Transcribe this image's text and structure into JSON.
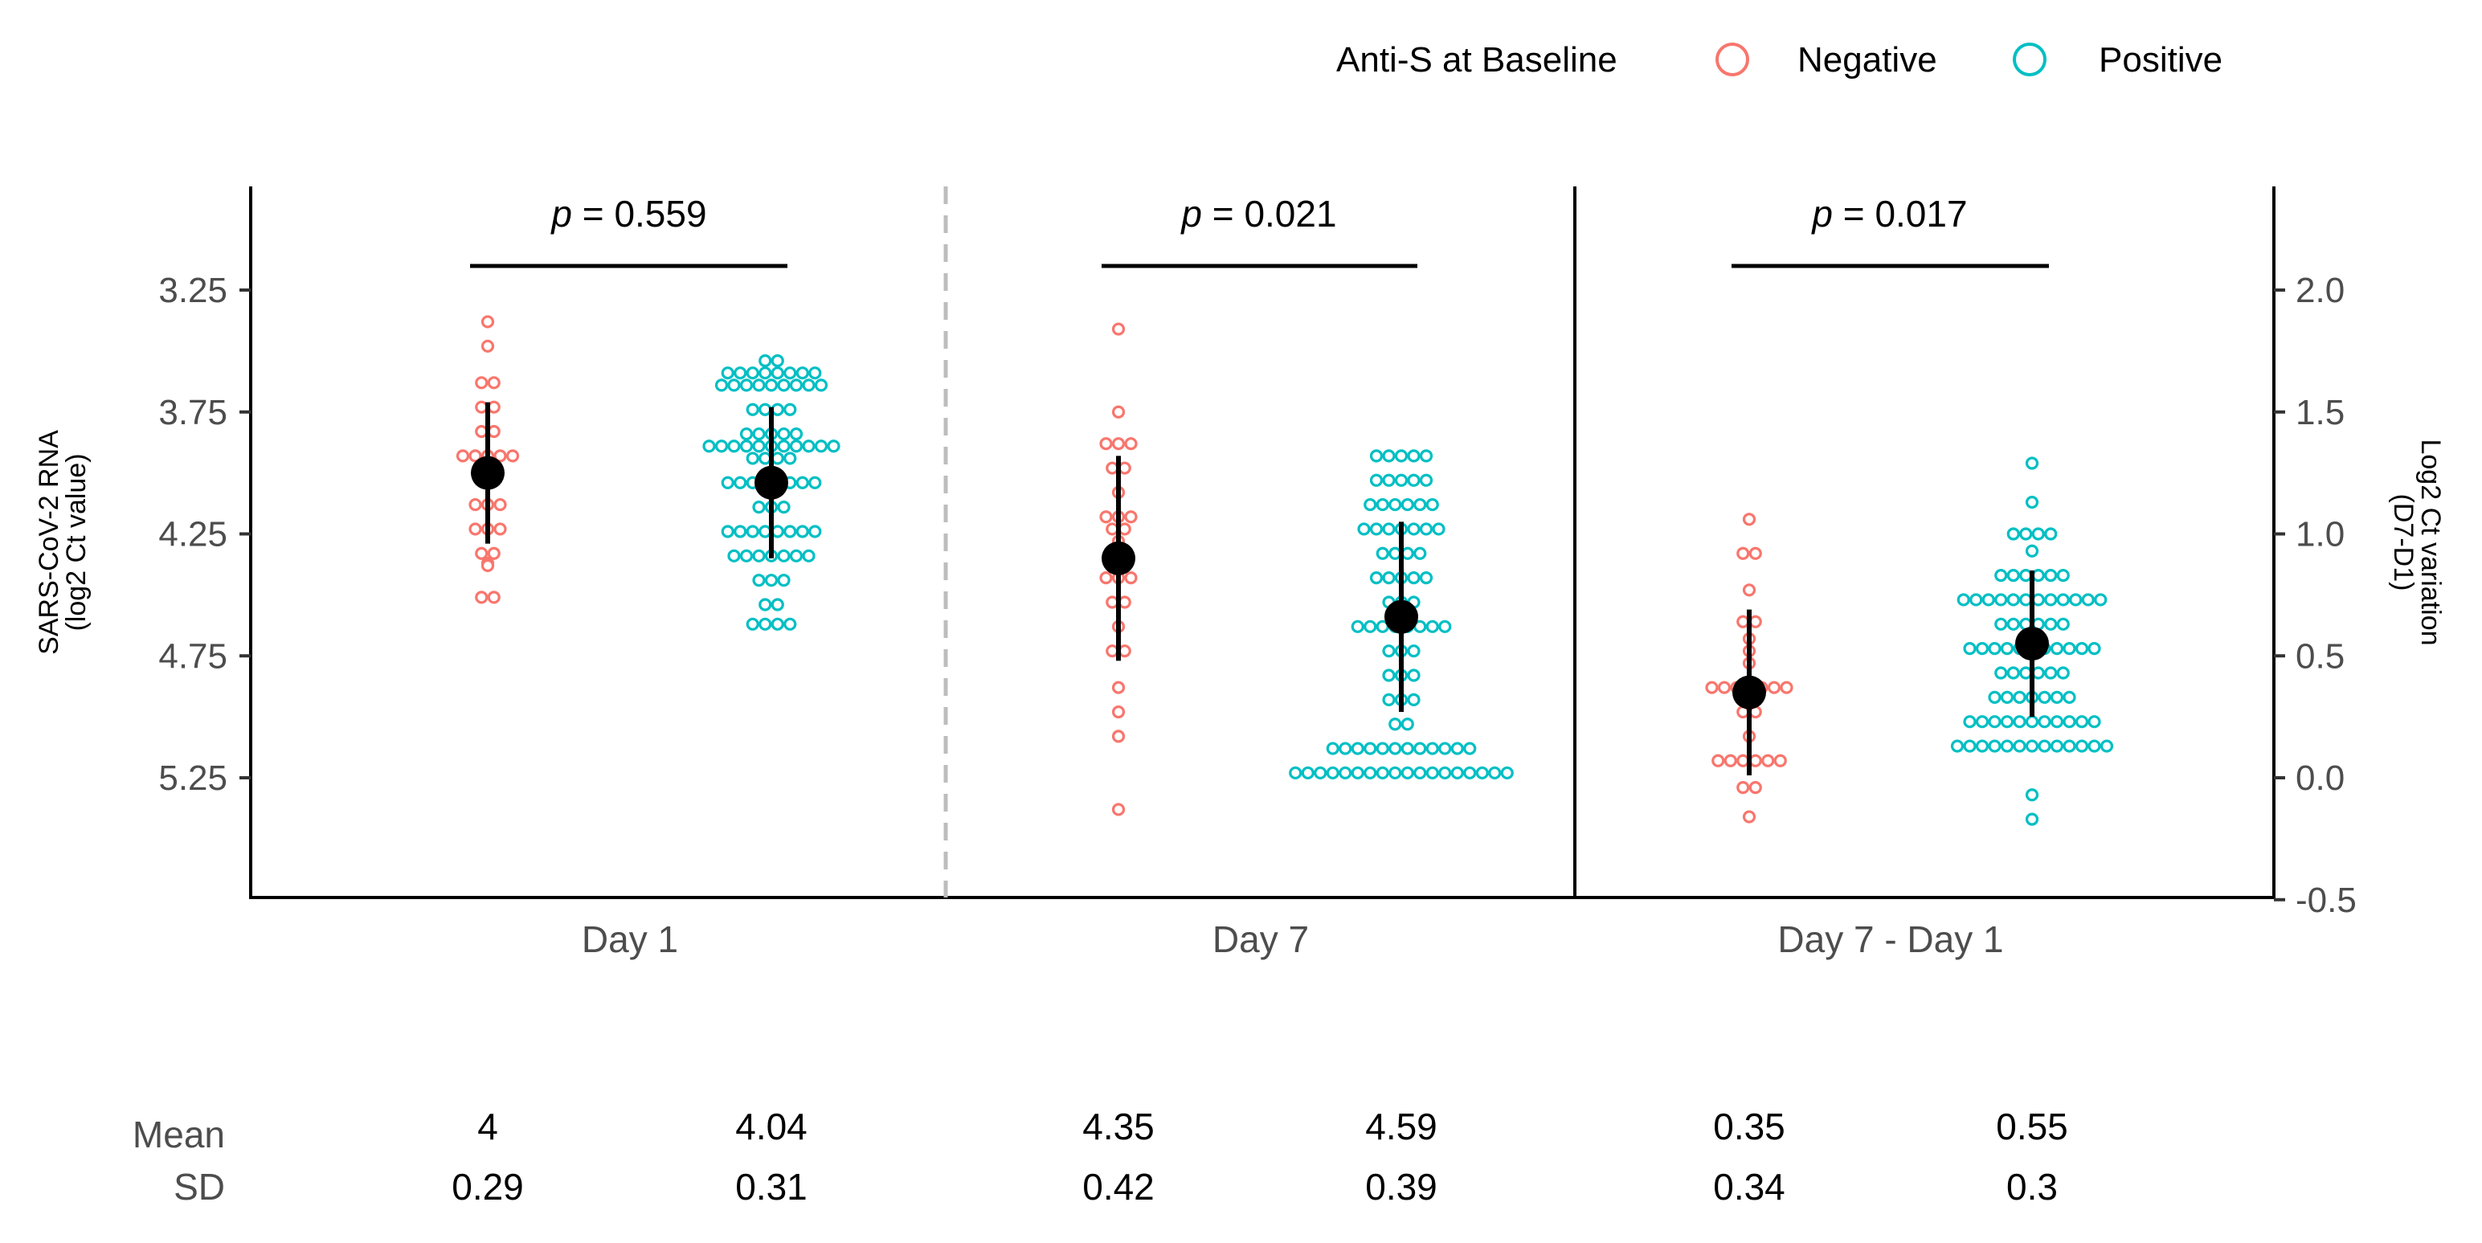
{
  "chart_data": {
    "type": "scatter",
    "legend": {
      "title": "Anti-S at Baseline",
      "entries": [
        {
          "label": "Negative",
          "color": "#F8766D"
        },
        {
          "label": "Positive",
          "color": "#00BFC4"
        }
      ],
      "position": "top-right"
    },
    "y_left": {
      "label_line1": "SARS-CoV-2 RNA",
      "label_line2": "(log2 Ct value)",
      "ticks": [
        "3.25",
        "3.75",
        "4.25",
        "4.75",
        "5.25"
      ],
      "tick_values": [
        3.25,
        3.75,
        4.25,
        4.75,
        5.25
      ],
      "range": [
        2.84,
        5.75
      ],
      "reversed": true
    },
    "y_right": {
      "label_line1": "Log2 Ct variation",
      "label_line2": "(D7-D1)",
      "ticks": [
        "2.0",
        "1.5",
        "1.0",
        "0.5",
        "0.0",
        "-0.5"
      ],
      "tick_values": [
        2.0,
        1.5,
        1.0,
        0.5,
        0.0,
        -0.5
      ],
      "range": [
        -0.5,
        2.42
      ]
    },
    "panels": [
      {
        "category": "Day 1",
        "axis": "left",
        "p_label": "p",
        "p_value": " = 0.559",
        "groups": [
          {
            "name": "Negative",
            "mean": 4.0,
            "sd": 0.29,
            "mean_text": "4",
            "sd_text": "0.29",
            "points": [
              3.38,
              3.48,
              3.63,
              3.63,
              3.73,
              3.73,
              3.83,
              3.83,
              3.93,
              3.93,
              3.93,
              3.93,
              3.93,
              4.03,
              4.03,
              4.13,
              4.13,
              4.13,
              4.23,
              4.23,
              4.23,
              4.33,
              4.33,
              4.37,
              4.38,
              4.51,
              4.51
            ]
          },
          {
            "name": "Positive",
            "mean": 4.04,
            "sd": 0.31,
            "mean_text": "4.04",
            "sd_text": "0.31",
            "points": [
              3.54,
              3.54,
              3.59,
              3.59,
              3.59,
              3.59,
              3.59,
              3.59,
              3.59,
              3.59,
              3.64,
              3.64,
              3.64,
              3.64,
              3.64,
              3.64,
              3.64,
              3.64,
              3.64,
              3.74,
              3.74,
              3.74,
              3.74,
              3.84,
              3.84,
              3.84,
              3.84,
              3.84,
              3.89,
              3.89,
              3.89,
              3.89,
              3.89,
              3.89,
              3.89,
              3.89,
              3.89,
              3.89,
              3.89,
              3.94,
              3.94,
              3.94,
              3.94,
              4.04,
              4.04,
              4.04,
              4.04,
              4.04,
              4.04,
              4.04,
              4.04,
              4.14,
              4.14,
              4.14,
              4.24,
              4.24,
              4.24,
              4.24,
              4.24,
              4.24,
              4.24,
              4.24,
              4.34,
              4.34,
              4.34,
              4.34,
              4.34,
              4.34,
              4.34,
              4.44,
              4.44,
              4.44,
              4.54,
              4.54,
              4.62,
              4.62,
              4.62,
              4.62
            ]
          }
        ]
      },
      {
        "category": "Day 7",
        "axis": "left",
        "p_label": "p",
        "p_value": " = 0.021",
        "groups": [
          {
            "name": "Negative",
            "mean": 4.35,
            "sd": 0.42,
            "mean_text": "4.35",
            "sd_text": "0.42",
            "points": [
              3.41,
              3.75,
              3.88,
              3.88,
              3.88,
              3.98,
              3.98,
              4.08,
              4.18,
              4.18,
              4.18,
              4.23,
              4.23,
              4.28,
              4.33,
              4.33,
              4.43,
              4.43,
              4.43,
              4.53,
              4.53,
              4.63,
              4.73,
              4.73,
              4.88,
              4.98,
              5.08,
              5.38
            ]
          },
          {
            "name": "Positive",
            "mean": 4.59,
            "sd": 0.39,
            "mean_text": "4.59",
            "sd_text": "0.39",
            "points": [
              3.93,
              3.93,
              3.93,
              3.93,
              3.93,
              4.03,
              4.03,
              4.03,
              4.03,
              4.03,
              4.13,
              4.13,
              4.13,
              4.13,
              4.13,
              4.13,
              4.23,
              4.23,
              4.23,
              4.23,
              4.23,
              4.23,
              4.23,
              4.33,
              4.33,
              4.33,
              4.33,
              4.43,
              4.43,
              4.43,
              4.43,
              4.43,
              4.53,
              4.53,
              4.53,
              4.63,
              4.63,
              4.63,
              4.63,
              4.63,
              4.63,
              4.63,
              4.63,
              4.73,
              4.73,
              4.73,
              4.83,
              4.83,
              4.83,
              4.93,
              4.93,
              4.93,
              5.03,
              5.03,
              5.13,
              5.13,
              5.13,
              5.13,
              5.13,
              5.13,
              5.13,
              5.13,
              5.13,
              5.13,
              5.13,
              5.13,
              5.23,
              5.23,
              5.23,
              5.23,
              5.23,
              5.23,
              5.23,
              5.23,
              5.23,
              5.23,
              5.23,
              5.23,
              5.23,
              5.23,
              5.23,
              5.23,
              5.23,
              5.23
            ]
          }
        ]
      },
      {
        "category": "Day 7 - Day 1",
        "axis": "right",
        "p_label": "p",
        "p_value": " = 0.017",
        "groups": [
          {
            "name": "Negative",
            "mean": 0.35,
            "sd": 0.34,
            "mean_text": "0.35",
            "sd_text": "0.34",
            "points": [
              1.06,
              0.92,
              0.92,
              0.77,
              0.64,
              0.64,
              0.57,
              0.52,
              0.47,
              0.37,
              0.37,
              0.37,
              0.37,
              0.37,
              0.37,
              0.37,
              0.27,
              0.27,
              0.17,
              0.07,
              0.07,
              0.07,
              0.07,
              0.07,
              0.07,
              -0.04,
              -0.04,
              -0.16
            ]
          },
          {
            "name": "Positive",
            "mean": 0.55,
            "sd": 0.3,
            "mean_text": "0.55",
            "sd_text": "0.3",
            "points": [
              1.29,
              1.13,
              1.0,
              1.0,
              1.0,
              1.0,
              0.93,
              0.83,
              0.83,
              0.83,
              0.83,
              0.83,
              0.83,
              0.73,
              0.73,
              0.73,
              0.73,
              0.73,
              0.73,
              0.73,
              0.73,
              0.73,
              0.73,
              0.73,
              0.73,
              0.63,
              0.63,
              0.63,
              0.63,
              0.63,
              0.63,
              0.53,
              0.53,
              0.53,
              0.53,
              0.53,
              0.53,
              0.53,
              0.53,
              0.53,
              0.53,
              0.53,
              0.43,
              0.43,
              0.43,
              0.43,
              0.43,
              0.43,
              0.33,
              0.33,
              0.33,
              0.33,
              0.33,
              0.33,
              0.33,
              0.23,
              0.23,
              0.23,
              0.23,
              0.23,
              0.23,
              0.23,
              0.23,
              0.23,
              0.23,
              0.23,
              0.13,
              0.13,
              0.13,
              0.13,
              0.13,
              0.13,
              0.13,
              0.13,
              0.13,
              0.13,
              0.13,
              0.13,
              0.13,
              -0.07,
              -0.17
            ]
          }
        ]
      }
    ],
    "summary_rows": [
      "Mean",
      "SD"
    ],
    "grid": false
  }
}
